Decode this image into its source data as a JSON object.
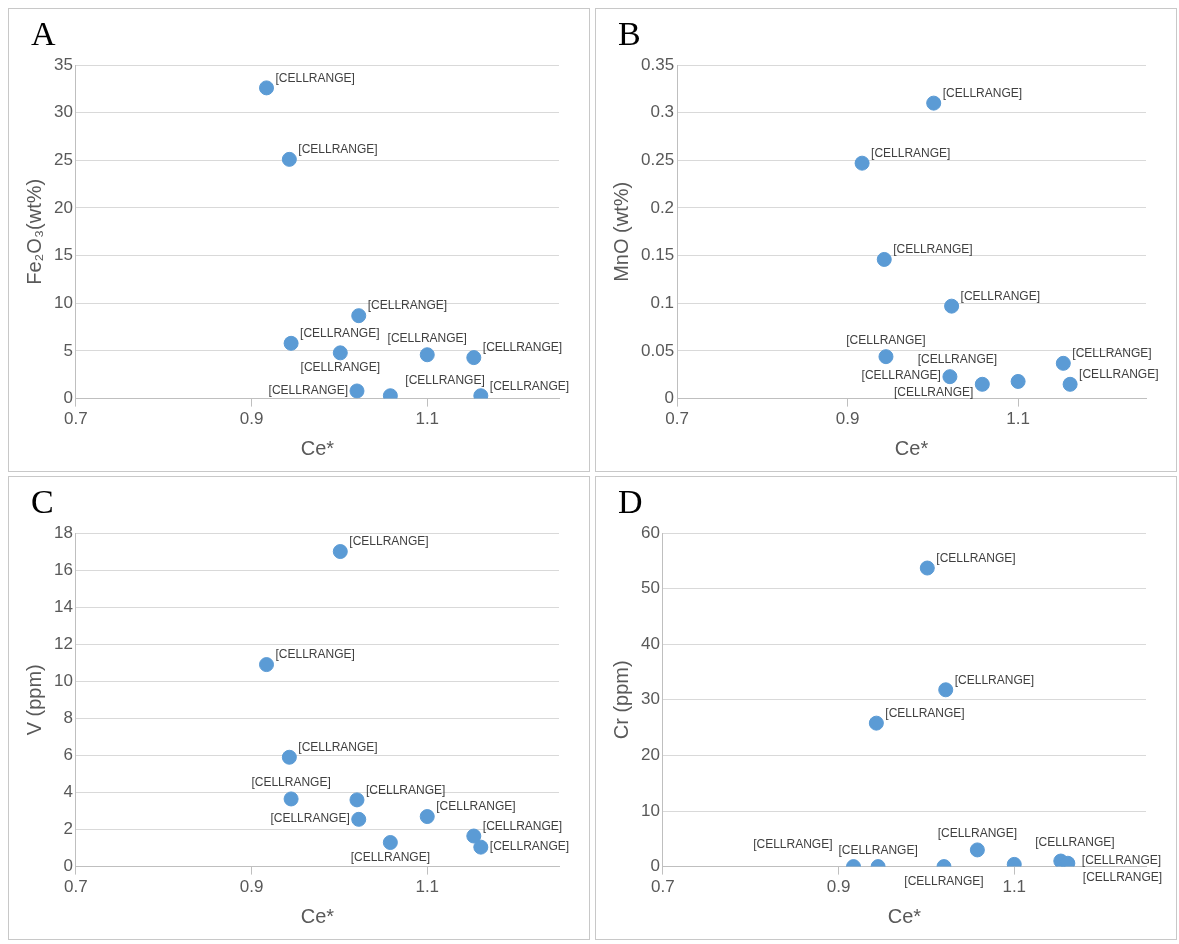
{
  "chart_data": [
    {
      "type": "scatter",
      "title": "A",
      "xlabel": "Ce*",
      "ylabel": "Fe₂O₃(wt%)",
      "xlim": [
        0.7,
        1.25
      ],
      "xticks": [
        0.7,
        0.9,
        1.1
      ],
      "ylim": [
        0,
        35
      ],
      "yticks": [
        0,
        5,
        10,
        15,
        20,
        25,
        30,
        35
      ],
      "grid": "y",
      "legend": false,
      "marker": "circle",
      "series": [
        {
          "color": "#5b9bd5",
          "x": [
            0.917,
            0.943,
            0.945,
            1.001,
            1.022,
            1.02,
            1.058,
            1.1,
            1.153,
            1.161
          ],
          "values": [
            32.6,
            25.1,
            5.8,
            4.8,
            8.7,
            0.8,
            0.3,
            4.6,
            4.3,
            0.3
          ],
          "value_labels": [
            "[CELLRANGE]",
            "[CELLRANGE]",
            "[CELLRANGE]",
            "[CELLRANGE]",
            "[CELLRANGE]",
            "[CELLRANGE]",
            "[CELLRANGE]",
            "[CELLRANGE]",
            "[CELLRANGE]",
            "[CELLRANGE]"
          ]
        }
      ]
    },
    {
      "type": "scatter",
      "title": "B",
      "xlabel": "Ce*",
      "ylabel": "MnO (wt%)",
      "xlim": [
        0.7,
        1.25
      ],
      "xticks": [
        0.7,
        0.9,
        1.1
      ],
      "ylim": [
        0,
        0.35
      ],
      "yticks": [
        0,
        0.05,
        0.1,
        0.15,
        0.2,
        0.25,
        0.3,
        0.35
      ],
      "grid": "y",
      "legend": false,
      "marker": "circle",
      "series": [
        {
          "color": "#5b9bd5",
          "x": [
            0.917,
            0.943,
            0.945,
            1.001,
            1.022,
            1.02,
            1.058,
            1.1,
            1.153,
            1.161
          ],
          "values": [
            0.247,
            0.146,
            0.044,
            0.31,
            0.097,
            0.023,
            0.015,
            0.018,
            0.037,
            0.015
          ],
          "value_labels": [
            "[CELLRANGE]",
            "[CELLRANGE]",
            "[CELLRANGE]",
            "[CELLRANGE]",
            "[CELLRANGE]",
            "[CELLRANGE]",
            "[CELLRANGE]",
            "[CELLRANGE]",
            "[CELLRANGE]",
            "[CELLRANGE]"
          ]
        }
      ]
    },
    {
      "type": "scatter",
      "title": "C",
      "xlabel": "Ce*",
      "ylabel": "V (ppm)",
      "xlim": [
        0.7,
        1.25
      ],
      "xticks": [
        0.7,
        0.9,
        1.1
      ],
      "ylim": [
        0,
        18
      ],
      "yticks": [
        0,
        2,
        4,
        6,
        8,
        10,
        12,
        14,
        16,
        18
      ],
      "grid": "y",
      "legend": false,
      "marker": "circle",
      "series": [
        {
          "color": "#5b9bd5",
          "x": [
            0.917,
            0.943,
            0.945,
            1.001,
            1.022,
            1.02,
            1.058,
            1.1,
            1.153,
            1.161
          ],
          "values": [
            10.9,
            5.9,
            3.65,
            17.0,
            2.55,
            3.6,
            1.3,
            2.7,
            1.65,
            1.05
          ],
          "value_labels": [
            "[CELLRANGE]",
            "[CELLRANGE]",
            "[CELLRANGE]",
            "[CELLRANGE]",
            "[CELLRANGE]",
            "[CELLRANGE]",
            "[CELLRANGE]",
            "[CELLRANGE]",
            "[CELLRANGE]",
            "[CELLRANGE]"
          ]
        }
      ]
    },
    {
      "type": "scatter",
      "title": "D",
      "xlabel": "Ce*",
      "ylabel": "Cr (ppm)",
      "xlim": [
        0.7,
        1.25
      ],
      "xticks": [
        0.7,
        0.9,
        1.1
      ],
      "ylim": [
        0,
        60
      ],
      "yticks": [
        0,
        10,
        20,
        30,
        40,
        50,
        60
      ],
      "grid": "y",
      "legend": false,
      "marker": "circle",
      "series": [
        {
          "color": "#5b9bd5",
          "x": [
            0.917,
            0.943,
            0.945,
            1.001,
            1.022,
            1.02,
            1.058,
            1.1,
            1.153,
            1.161
          ],
          "values": [
            0,
            25.8,
            0,
            53.7,
            31.8,
            0,
            3.0,
            0.4,
            1.0,
            0.6
          ],
          "value_labels": [
            "[CELLRANGE]",
            "[CELLRANGE]",
            "[CELLRANGE]",
            "[CELLRANGE]",
            "[CELLRANGE]",
            "[CELLRANGE]",
            "[CELLRANGE]",
            "[CELLRANGE]",
            "[CELLRANGE]",
            "[CELLRANGE]"
          ]
        }
      ]
    }
  ]
}
